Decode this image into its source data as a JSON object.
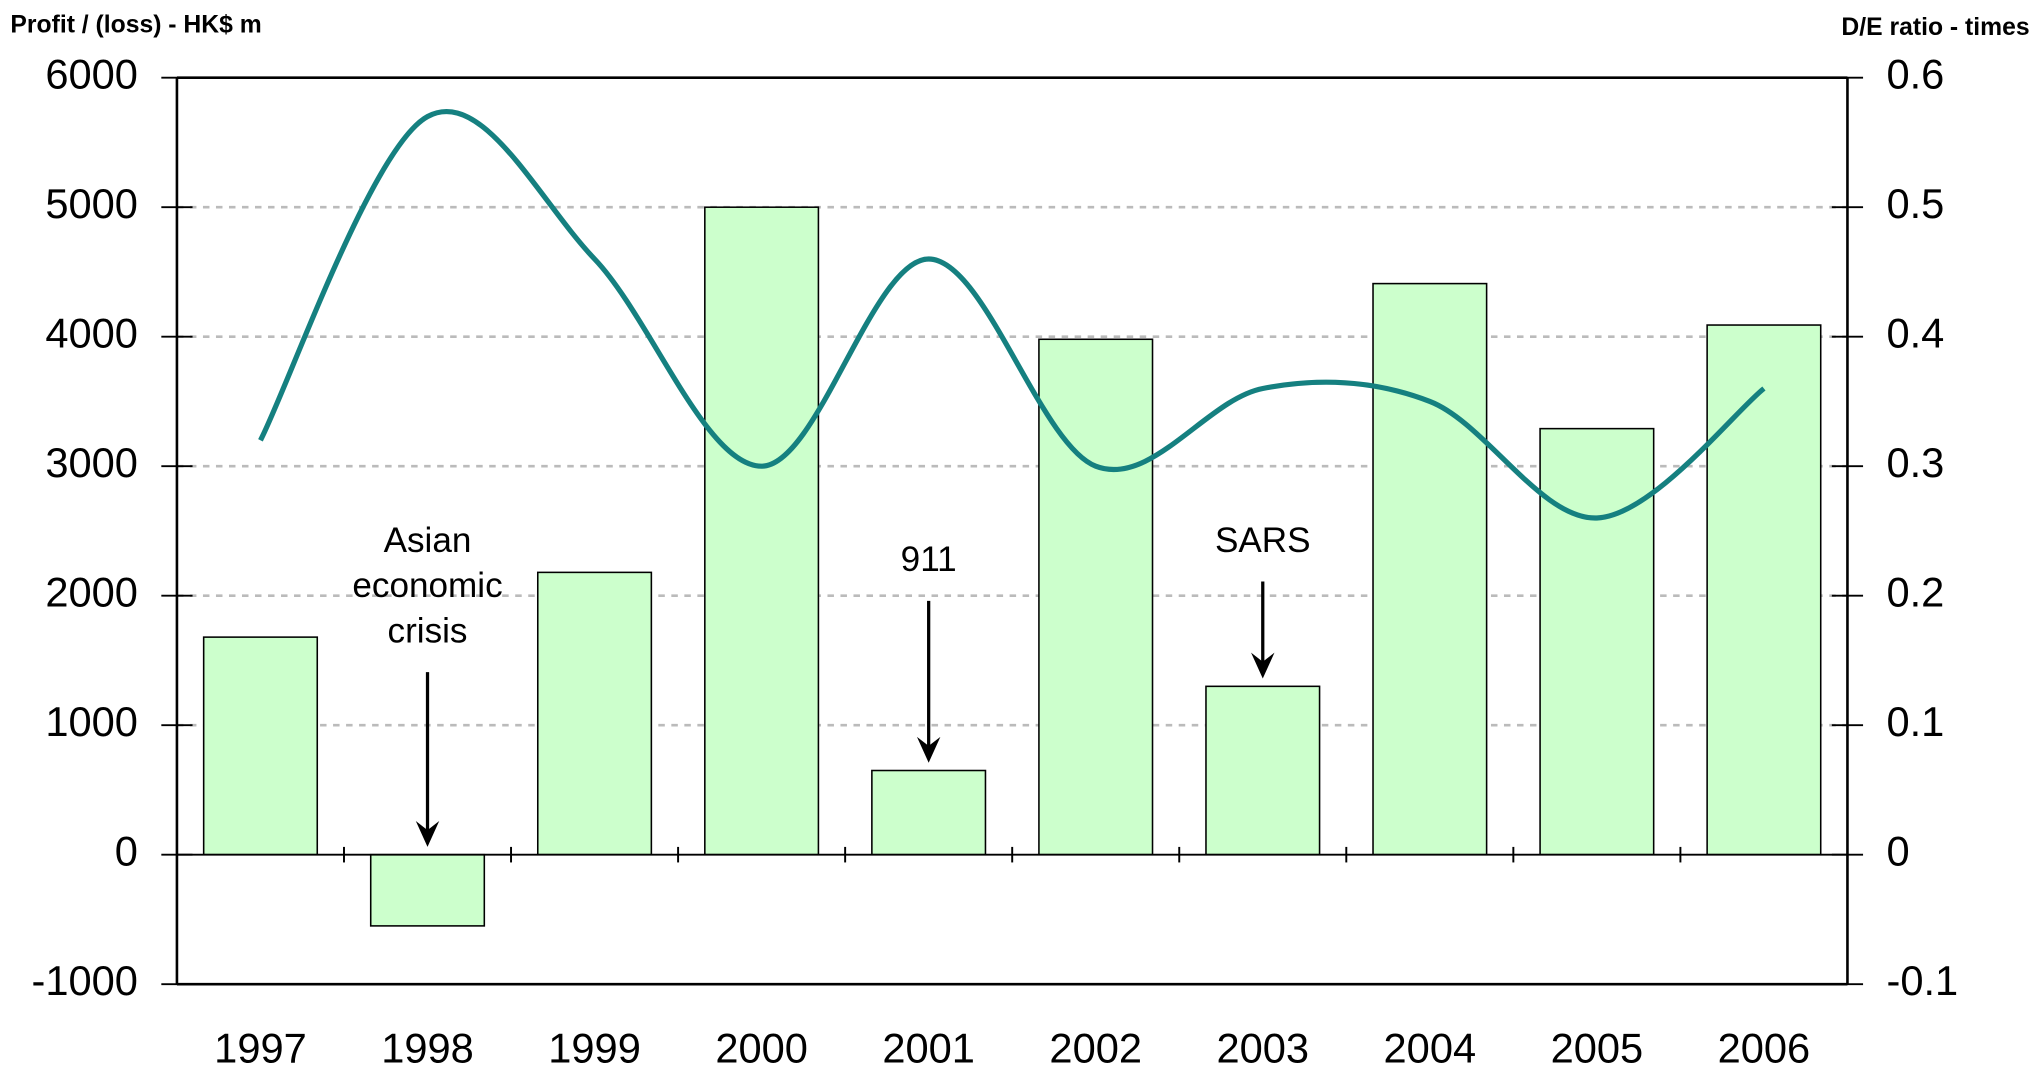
{
  "chart_data": {
    "type": "bar",
    "y_label": "Profit / (loss) - HK$ m",
    "y2_label": "D/E ratio - times",
    "categories": [
      "1997",
      "1998",
      "1999",
      "2000",
      "2001",
      "2002",
      "2003",
      "2004",
      "2005",
      "2006"
    ],
    "series": [
      {
        "type": "bar",
        "color": "#ccffcc",
        "values": [
          1680,
          -550,
          2180,
          5000,
          650,
          3980,
          1300,
          4410,
          3290,
          4090
        ]
      },
      {
        "type": "line",
        "axis": "y2",
        "color": "#158080",
        "values": [
          0.32,
          0.57,
          0.46,
          0.3,
          0.46,
          0.3,
          0.36,
          0.35,
          0.26,
          0.36
        ]
      }
    ],
    "ylim": [
      -1000,
      6000
    ],
    "yticks": [
      -1000,
      0,
      1000,
      2000,
      3000,
      4000,
      5000,
      6000
    ],
    "y2lim": [
      -0.1,
      0.6
    ],
    "y2ticks": [
      -0.1,
      0,
      0.1,
      0.2,
      0.3,
      0.4,
      0.5,
      0.6
    ],
    "grid": true,
    "annotations": [
      {
        "lines": [
          "Asian",
          "economic",
          "crisis"
        ],
        "category": 1
      },
      {
        "lines": [
          "911"
        ],
        "category": 4
      },
      {
        "lines": [
          "SARS"
        ],
        "category": 6
      }
    ]
  }
}
